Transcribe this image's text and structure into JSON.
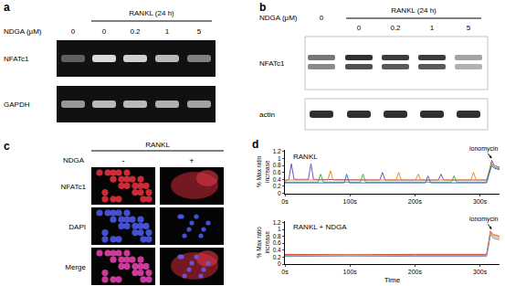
{
  "panels": {
    "a": {
      "label": "a",
      "ndga_label": "NDGA (μM)",
      "treatment_label": "RANKL (24 h)",
      "lanes": [
        0,
        0,
        0.2,
        1,
        5
      ],
      "treated_lanes": [
        false,
        true,
        true,
        true,
        true
      ],
      "rows": [
        {
          "label": "NFATc1",
          "band_intensity": [
            0.35,
            0.9,
            0.85,
            0.75,
            0.5
          ]
        },
        {
          "label": "GAPDH",
          "band_intensity": [
            0.6,
            0.75,
            0.75,
            0.7,
            0.65
          ]
        }
      ]
    },
    "b": {
      "label": "b",
      "ndga_label": "NDGA (μM)",
      "treatment_label": "RANKL (24 h)",
      "lanes": [
        0,
        0,
        0.2,
        1,
        5
      ],
      "treated_lanes": [
        false,
        true,
        true,
        true,
        true
      ],
      "rows": [
        {
          "label": "NFATc1",
          "band_intensity": [
            0.6,
            0.9,
            0.85,
            0.85,
            0.4
          ]
        },
        {
          "label": "actin",
          "band_intensity": [
            0.9,
            0.9,
            0.9,
            0.9,
            0.9
          ]
        }
      ]
    },
    "c": {
      "label": "c",
      "treatment_label": "RANKL",
      "ndga_label": "NDGA",
      "columns": [
        "-",
        "+"
      ],
      "rows": [
        "NFATc1",
        "DAPI",
        "Merge"
      ]
    },
    "d": {
      "label": "d"
    }
  },
  "chart_data": [
    {
      "type": "line",
      "title": "RANKL",
      "ylabel": "% Max ratio increase",
      "xlim": [
        0,
        330
      ],
      "ylim": [
        0,
        1.25
      ],
      "xticks": [
        {
          "value": 0,
          "label": "0s"
        },
        {
          "value": 100,
          "label": "100s"
        },
        {
          "value": 200,
          "label": "200s"
        },
        {
          "value": 300,
          "label": "300s"
        }
      ],
      "yticks": [
        0,
        0.2,
        0.4,
        0.6,
        0.8,
        1,
        1.2
      ],
      "annotations": [
        {
          "text": "ionomycin",
          "x": 318,
          "y": 1.0
        }
      ],
      "series": [
        {
          "color": "#7a4fc8",
          "x": [
            0,
            6,
            10,
            14,
            36,
            40,
            44,
            146,
            150,
            154,
            236,
            240,
            244,
            310,
            314,
            318,
            322,
            330
          ],
          "values": [
            0.35,
            0.4,
            0.85,
            0.4,
            0.4,
            0.85,
            0.4,
            0.38,
            0.6,
            0.38,
            0.38,
            0.55,
            0.38,
            0.38,
            0.6,
            0.95,
            0.8,
            0.75
          ]
        },
        {
          "color": "#f08a1c",
          "x": [
            0,
            66,
            70,
            74,
            171,
            175,
            179,
            201,
            205,
            209,
            286,
            290,
            294,
            310,
            314,
            318,
            322,
            330
          ],
          "values": [
            0.38,
            0.38,
            0.65,
            0.38,
            0.38,
            0.6,
            0.38,
            0.38,
            0.55,
            0.38,
            0.38,
            0.6,
            0.38,
            0.38,
            0.65,
            0.9,
            0.8,
            0.72
          ]
        },
        {
          "color": "#4caf50",
          "x": [
            0,
            51,
            55,
            59,
            116,
            120,
            124,
            256,
            260,
            264,
            310,
            314,
            318,
            322,
            330
          ],
          "values": [
            0.32,
            0.32,
            0.55,
            0.32,
            0.32,
            0.55,
            0.32,
            0.32,
            0.5,
            0.32,
            0.32,
            0.6,
            0.85,
            0.75,
            0.7
          ]
        },
        {
          "color": "#3b6fd0",
          "x": [
            0,
            91,
            95,
            99,
            216,
            220,
            224,
            310,
            314,
            318,
            322,
            330
          ],
          "values": [
            0.3,
            0.3,
            0.55,
            0.3,
            0.3,
            0.5,
            0.3,
            0.3,
            0.55,
            0.8,
            0.72,
            0.68
          ]
        }
      ]
    },
    {
      "type": "line",
      "title": "RANKL + NDGA",
      "ylabel": "% Max ratio increase",
      "xlabel": "Time",
      "xlim": [
        0,
        330
      ],
      "ylim": [
        0,
        1.25
      ],
      "xticks": [
        {
          "value": 0,
          "label": "0s"
        },
        {
          "value": 100,
          "label": "100s"
        },
        {
          "value": 200,
          "label": "200s"
        },
        {
          "value": 300,
          "label": "300s"
        }
      ],
      "yticks": [
        0,
        0.2,
        0.4,
        0.6,
        0.8,
        1,
        1.2
      ],
      "annotations": [
        {
          "text": "ionomycin",
          "x": 318,
          "y": 1.0
        }
      ],
      "series": [
        {
          "color": "#d04030",
          "x": [
            0,
            100,
            200,
            310,
            313,
            316,
            320,
            330
          ],
          "values": [
            0.28,
            0.27,
            0.28,
            0.28,
            0.6,
            0.95,
            0.85,
            0.8
          ]
        },
        {
          "color": "#f09020",
          "x": [
            0,
            100,
            200,
            310,
            313,
            316,
            320,
            330
          ],
          "values": [
            0.25,
            0.26,
            0.25,
            0.25,
            0.55,
            0.9,
            0.8,
            0.75
          ]
        },
        {
          "color": "#7090b0",
          "x": [
            0,
            100,
            200,
            310,
            313,
            316,
            320,
            330
          ],
          "values": [
            0.22,
            0.23,
            0.22,
            0.22,
            0.5,
            0.85,
            0.75,
            0.7
          ]
        }
      ]
    }
  ]
}
